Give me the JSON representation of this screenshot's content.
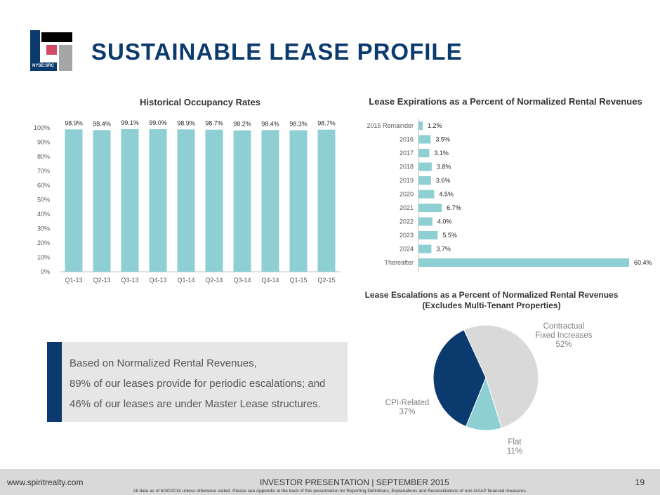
{
  "slide_title": "SUSTAINABLE LEASE PROFILE",
  "logo_text": "NYSE:SRC",
  "occupancy_chart_title": "Historical Occupancy Rates",
  "expirations_chart_title": "Lease Expirations as a Percent of Normalized Rental Revenues",
  "escalations_chart_title_line1": "Lease Escalations as a  Percent of Normalized Rental Revenues",
  "escalations_chart_title_line2": "(Excludes Multi-Tenant Properties)",
  "callout": {
    "line1": "Based on Normalized Rental Revenues,",
    "line2": "89% of our leases provide for periodic escalations; and",
    "line3": "46% of our leases are under Master Lease structures."
  },
  "footer": {
    "url": "www.spiritrealty.com",
    "presentation": "INVESTOR PRESENTATION | SEPTEMBER 2015",
    "page": "19",
    "note": "All data as of 6/30/2015 unless otherwise stated.  Please see Appendix at the back of this presentation for Reporting Definitions, Explanations and Reconciliations of non-GAAP financial measures."
  },
  "colors": {
    "brand_navy": "#0b3a6e",
    "bar_teal": "#8ecfd3",
    "pie_gray": "#d9d9d9",
    "logo_red": "#d24a64",
    "logo_gray": "#a6a6a6"
  },
  "chart_data": [
    {
      "type": "bar",
      "title": "Historical Occupancy Rates",
      "categories": [
        "Q1-13",
        "Q2-13",
        "Q3-13",
        "Q4-13",
        "Q1-14",
        "Q2-14",
        "Q3-14",
        "Q4-14",
        "Q1-15",
        "Q2-15"
      ],
      "values": [
        98.9,
        98.4,
        99.1,
        99.0,
        98.9,
        98.7,
        98.2,
        98.4,
        98.3,
        98.7
      ],
      "data_labels": [
        "98.9%",
        "98.4%",
        "99.1%",
        "99.0%",
        "98.9%",
        "98.7%",
        "98.2%",
        "98.4%",
        "98.3%",
        "98.7%"
      ],
      "y_ticks": [
        "0%",
        "10%",
        "20%",
        "30%",
        "40%",
        "50%",
        "60%",
        "70%",
        "80%",
        "90%",
        "100%"
      ],
      "ylim": [
        0,
        100
      ]
    },
    {
      "type": "bar",
      "orientation": "horizontal",
      "title": "Lease Expirations as a Percent of Normalized Rental Revenues",
      "categories": [
        "2015 Remainder",
        "2016",
        "2017",
        "2018",
        "2019",
        "2020",
        "2021",
        "2022",
        "2023",
        "2024",
        "Thereafter"
      ],
      "values": [
        1.2,
        3.5,
        3.1,
        3.8,
        3.6,
        4.5,
        6.7,
        4.0,
        5.5,
        3.7,
        60.4
      ],
      "data_labels": [
        "1.2%",
        "3.5%",
        "3.1%",
        "3.8%",
        "3.6%",
        "4.5%",
        "6.7%",
        "4.0%",
        "5.5%",
        "3.7%",
        "60.4%"
      ],
      "xlim": [
        0,
        60.4
      ]
    },
    {
      "type": "pie",
      "title": "Lease Escalations as a  Percent of Normalized Rental Revenues (Excludes Multi-Tenant Properties)",
      "slices": [
        {
          "label_line1": "Contractual",
          "label_line2": "Fixed Increases",
          "pct": "52%",
          "value": 52,
          "color": "#d9d9d9"
        },
        {
          "label_line1": "Flat",
          "label_line2": "",
          "pct": "11%",
          "value": 11,
          "color": "#8ecfd3"
        },
        {
          "label_line1": "CPI-Related",
          "label_line2": "",
          "pct": "37%",
          "value": 37,
          "color": "#0b3a6e"
        }
      ]
    }
  ]
}
